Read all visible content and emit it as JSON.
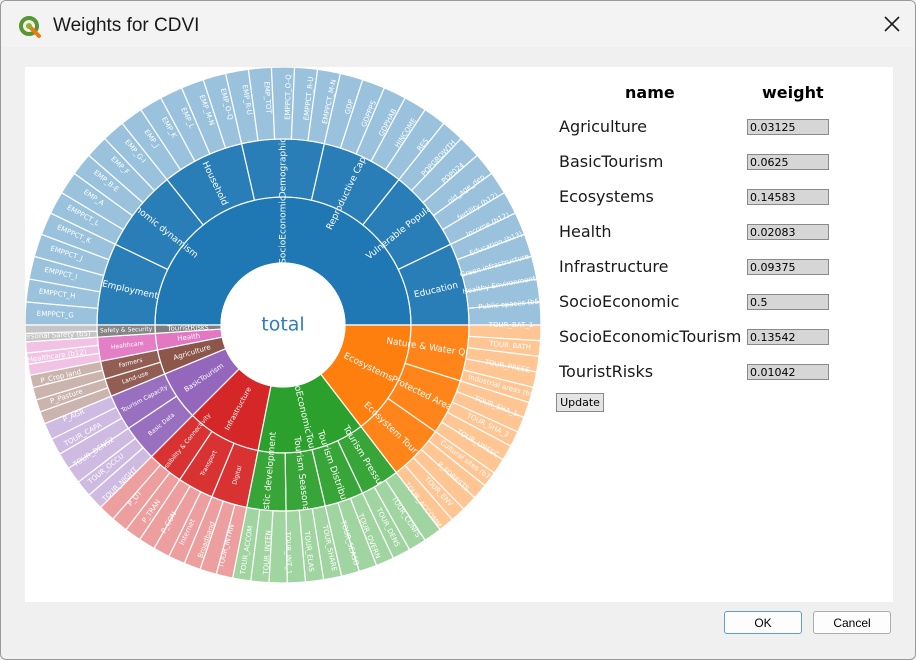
{
  "window": {
    "title": "Weights for CDVI",
    "close_icon": "close-icon",
    "app_icon": "qgis-logo-icon"
  },
  "chart": {
    "center_label": "total",
    "ring1": [
      {
        "label": "SocioEconomic",
        "color": "#1f77b4"
      },
      {
        "label": "Ecosystems",
        "color": "#ff7f0e"
      },
      {
        "label": "SocioEconomicTourism",
        "color": "#2ca02c"
      },
      {
        "label": "Infrastructure",
        "color": "#d62728"
      },
      {
        "label": "BasicTourism",
        "color": "#9467bd"
      },
      {
        "label": "Agriculture",
        "color": "#8c564b"
      },
      {
        "label": "Health",
        "color": "#e377c2"
      },
      {
        "label": "TouristRisks",
        "color": "#7f7f7f"
      }
    ],
    "ring2": [
      {
        "label": "Employment",
        "parent": 0
      },
      {
        "label": "Economic dynamism",
        "parent": 0
      },
      {
        "label": "Household",
        "parent": 0
      },
      {
        "label": "Demographic",
        "parent": 0
      },
      {
        "label": "Reproductive Capacity",
        "parent": 0
      },
      {
        "label": "Vulnerable Population",
        "parent": 0
      },
      {
        "label": "Education",
        "parent": 0
      },
      {
        "label": "Nature & Water Quality",
        "parent": 1
      },
      {
        "label": "Protected Areas",
        "parent": 1
      },
      {
        "label": "Ecosystem Tourism",
        "parent": 1
      },
      {
        "label": "Tourism Pressure",
        "parent": 2
      },
      {
        "label": "Tourism Distribution",
        "parent": 2
      },
      {
        "label": "Tourism Seasonality",
        "parent": 2
      },
      {
        "label": "Touristic development",
        "parent": 2
      },
      {
        "label": "Digital",
        "parent": 3
      },
      {
        "label": "Transport",
        "parent": 3
      },
      {
        "label": "Accessibility & Connectivity",
        "parent": 3
      },
      {
        "label": "Basic Data",
        "parent": 4
      },
      {
        "label": "Tourism Capacity",
        "parent": 4
      },
      {
        "label": "Land-use",
        "parent": 5
      },
      {
        "label": "Farmers",
        "parent": 5
      },
      {
        "label": "Healthcare",
        "parent": 6
      },
      {
        "label": "Safety & Security",
        "parent": 7
      }
    ],
    "ring3_labels": [
      "EMPPCT_G",
      "EMPPCT_H",
      "EMPPCT_I",
      "EMPPCT_J",
      "EMPPCT_K",
      "EMPPCT_L",
      "EMP_A",
      "EMP_B-E",
      "EMP_F",
      "EMP_G-I",
      "EMP_J",
      "EMP_K",
      "EMP_L",
      "EMP_M-N",
      "EMP_O-Q",
      "EMP_R-U",
      "EMP_TOT",
      "EMPPCT_O-Q",
      "EMPPCT_R-U",
      "EMPPCT_M-N",
      "GDP",
      "GDPPPS",
      "GDPHAB",
      "HINCOME",
      "RES",
      "POPGROWTH",
      "POP024",
      "old_age_dep",
      "fertility (b12)",
      "Income (b12)",
      "Education (b13)",
      "Green infrastructure (b3)",
      "Healthy Environment (b4)",
      "Public spaces (b5)",
      "TOUR_BAT_1",
      "TOUR_BATH",
      "TOUR_PRESE",
      "Industrial areas (b9)",
      "TOUR_SHA_1",
      "TOUR_SHA_3",
      "TOUR_UNESC",
      "Cultural sites (b7)",
      "P_FORESTS",
      "TOUR_ENV",
      "TOUR_ACCOMM",
      "TOUR_CONFS",
      "TOUR_DENS",
      "TOUR_OVERN",
      "TOUR_SEASO",
      "TOUR_SHARE",
      "TOUR_ELAS",
      "TOUR_INT_1",
      "TOUR_INTEN",
      "TOUR_ACCOM",
      "TOUR_INTRN",
      "Broadband",
      "Internet",
      "P_CON",
      "P_TRAN",
      "P_OT",
      "TOUR_NIGHT",
      "TOUR_OCCU",
      "TOUR_DENS2",
      "TOUR_CAPA",
      "P_AGR",
      "P_Pasture",
      "P_Crop land",
      "Healthcare (b12)",
      "Personal Safety (b5)"
    ]
  },
  "panel": {
    "col_name": "name",
    "col_weight": "weight",
    "rows": [
      {
        "name": "Agriculture",
        "weight": "0.03125"
      },
      {
        "name": "BasicTourism",
        "weight": "0.0625"
      },
      {
        "name": "Ecosystems",
        "weight": "0.14583"
      },
      {
        "name": "Health",
        "weight": "0.02083"
      },
      {
        "name": "Infrastructure",
        "weight": "0.09375"
      },
      {
        "name": "SocioEconomic",
        "weight": "0.5"
      },
      {
        "name": "SocioEconomicTourism",
        "weight": "0.13542"
      },
      {
        "name": "TouristRisks",
        "weight": "0.01042"
      }
    ],
    "update_label": "Update"
  },
  "footer": {
    "ok_label": "OK",
    "cancel_label": "Cancel"
  }
}
